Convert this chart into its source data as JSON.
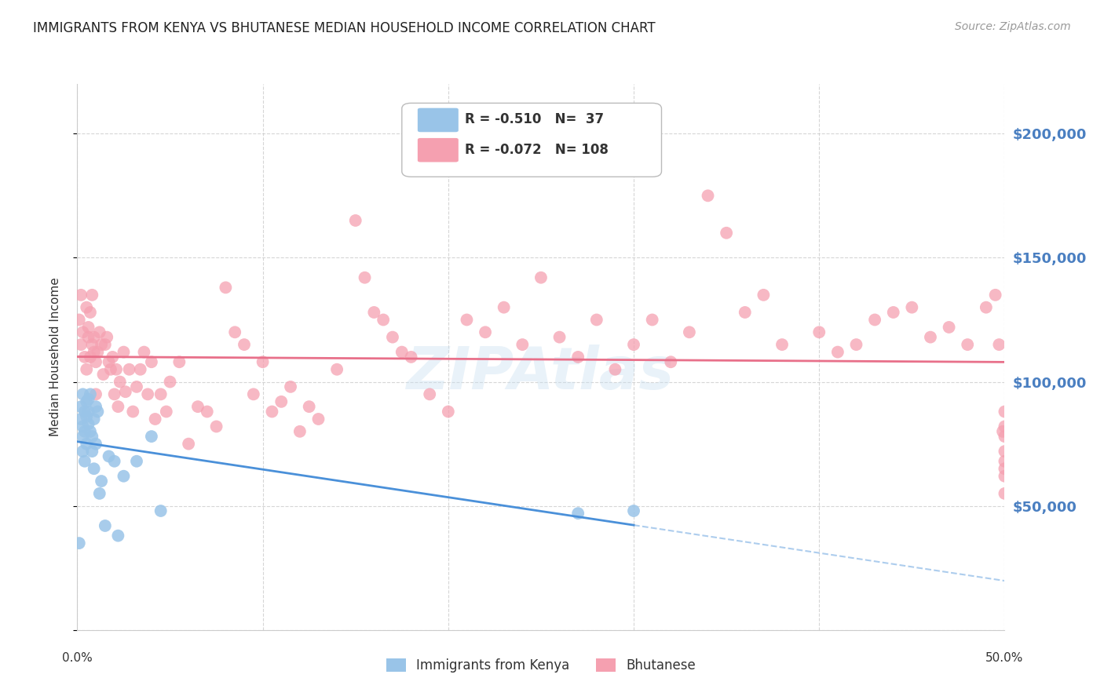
{
  "title": "IMMIGRANTS FROM KENYA VS BHUTANESE MEDIAN HOUSEHOLD INCOME CORRELATION CHART",
  "source": "Source: ZipAtlas.com",
  "ylabel": "Median Household Income",
  "yticks": [
    0,
    50000,
    100000,
    150000,
    200000
  ],
  "ytick_labels": [
    "",
    "$50,000",
    "$100,000",
    "$150,000",
    "$200,000"
  ],
  "xlim": [
    0.0,
    0.5
  ],
  "ylim": [
    0,
    220000
  ],
  "kenya_color": "#99c4e8",
  "bhutanese_color": "#f5a0b0",
  "kenya_line_color": "#4a90d9",
  "bhutanese_line_color": "#e8708a",
  "watermark": "ZIPAtlas",
  "background_color": "#ffffff",
  "kenya_points_x": [
    0.001,
    0.002,
    0.002,
    0.003,
    0.003,
    0.003,
    0.003,
    0.004,
    0.004,
    0.004,
    0.005,
    0.005,
    0.005,
    0.006,
    0.006,
    0.006,
    0.007,
    0.007,
    0.008,
    0.008,
    0.009,
    0.009,
    0.01,
    0.01,
    0.011,
    0.012,
    0.013,
    0.015,
    0.017,
    0.02,
    0.022,
    0.025,
    0.032,
    0.04,
    0.045,
    0.27,
    0.3
  ],
  "kenya_points_y": [
    35000,
    90000,
    85000,
    95000,
    82000,
    78000,
    72000,
    88000,
    80000,
    68000,
    92000,
    86000,
    75000,
    93000,
    88000,
    83000,
    95000,
    80000,
    78000,
    72000,
    85000,
    65000,
    90000,
    75000,
    88000,
    55000,
    60000,
    42000,
    70000,
    68000,
    38000,
    62000,
    68000,
    78000,
    48000,
    47000,
    48000
  ],
  "bhutanese_points_x": [
    0.001,
    0.002,
    0.002,
    0.003,
    0.004,
    0.005,
    0.005,
    0.006,
    0.006,
    0.007,
    0.007,
    0.008,
    0.008,
    0.009,
    0.009,
    0.01,
    0.01,
    0.011,
    0.012,
    0.013,
    0.014,
    0.015,
    0.016,
    0.017,
    0.018,
    0.019,
    0.02,
    0.021,
    0.022,
    0.023,
    0.025,
    0.026,
    0.028,
    0.03,
    0.032,
    0.034,
    0.036,
    0.038,
    0.04,
    0.042,
    0.045,
    0.048,
    0.05,
    0.055,
    0.06,
    0.065,
    0.07,
    0.075,
    0.08,
    0.085,
    0.09,
    0.095,
    0.1,
    0.105,
    0.11,
    0.115,
    0.12,
    0.125,
    0.13,
    0.14,
    0.15,
    0.155,
    0.16,
    0.165,
    0.17,
    0.175,
    0.18,
    0.19,
    0.2,
    0.21,
    0.22,
    0.23,
    0.24,
    0.25,
    0.26,
    0.27,
    0.28,
    0.29,
    0.3,
    0.31,
    0.32,
    0.33,
    0.34,
    0.35,
    0.36,
    0.37,
    0.38,
    0.4,
    0.41,
    0.42,
    0.43,
    0.44,
    0.45,
    0.46,
    0.47,
    0.48,
    0.49,
    0.495,
    0.497,
    0.499,
    0.5,
    0.5,
    0.5,
    0.5,
    0.5,
    0.5,
    0.5,
    0.5
  ],
  "bhutanese_points_y": [
    125000,
    115000,
    135000,
    120000,
    110000,
    105000,
    130000,
    118000,
    122000,
    128000,
    110000,
    115000,
    135000,
    112000,
    118000,
    95000,
    108000,
    112000,
    120000,
    115000,
    103000,
    115000,
    118000,
    108000,
    105000,
    110000,
    95000,
    105000,
    90000,
    100000,
    112000,
    96000,
    105000,
    88000,
    98000,
    105000,
    112000,
    95000,
    108000,
    85000,
    95000,
    88000,
    100000,
    108000,
    75000,
    90000,
    88000,
    82000,
    138000,
    120000,
    115000,
    95000,
    108000,
    88000,
    92000,
    98000,
    80000,
    90000,
    85000,
    105000,
    165000,
    142000,
    128000,
    125000,
    118000,
    112000,
    110000,
    95000,
    88000,
    125000,
    120000,
    130000,
    115000,
    142000,
    118000,
    110000,
    125000,
    105000,
    115000,
    125000,
    108000,
    120000,
    175000,
    160000,
    128000,
    135000,
    115000,
    120000,
    112000,
    115000,
    125000,
    128000,
    130000,
    118000,
    122000,
    115000,
    130000,
    135000,
    115000,
    80000,
    82000,
    88000,
    78000,
    72000,
    68000,
    65000,
    62000,
    55000
  ]
}
